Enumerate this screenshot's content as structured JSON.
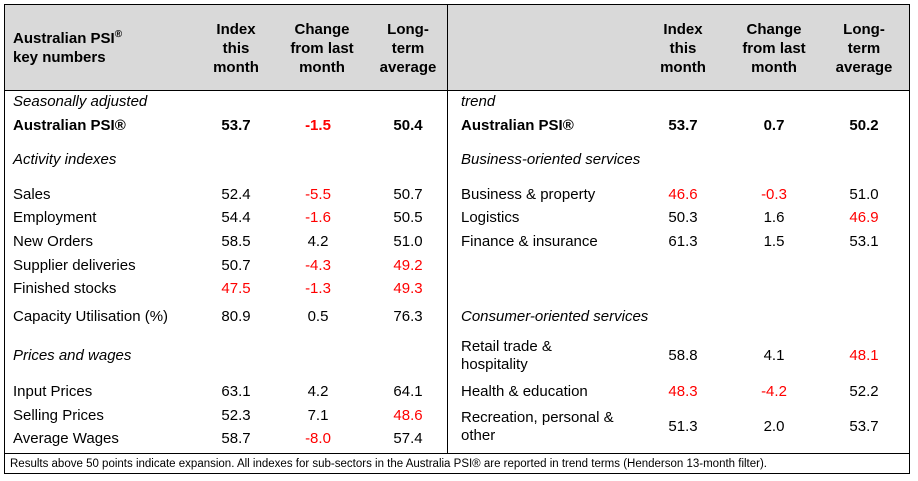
{
  "header": {
    "title": "Australian PSI",
    "title_mark": "®",
    "title_line2": "key numbers",
    "col1": [
      "Index",
      "this",
      "month"
    ],
    "col2": [
      "Change",
      "from last",
      "month"
    ],
    "col3": [
      "Long-",
      "term",
      "average"
    ]
  },
  "left": {
    "section_sa": "Seasonally adjusted",
    "psi": {
      "label": "Australian PSI®",
      "index": "53.7",
      "change": "-1.5",
      "avg": "50.4"
    },
    "section_activity": "Activity indexes",
    "activity": [
      {
        "label": "Sales",
        "index": "52.4",
        "change": "-5.5",
        "avg": "50.7"
      },
      {
        "label": "Employment",
        "index": "54.4",
        "change": "-1.6",
        "avg": "50.5"
      },
      {
        "label": "New Orders",
        "index": "58.5",
        "change": "4.2",
        "avg": "51.0"
      },
      {
        "label": "Supplier deliveries",
        "index": "50.7",
        "change": "-4.3",
        "avg": "49.2"
      },
      {
        "label": "Finished stocks",
        "index": "47.5",
        "change": "-1.3",
        "avg": "49.3"
      },
      {
        "label": "Capacity Utilisation (%)",
        "index": "80.9",
        "change": "0.5",
        "avg": "76.3"
      }
    ],
    "section_prices": "Prices and wages",
    "prices": [
      {
        "label": "Input Prices",
        "index": "63.1",
        "change": "4.2",
        "avg": "64.1"
      },
      {
        "label": "Selling Prices",
        "index": "52.3",
        "change": "7.1",
        "avg": "48.6"
      },
      {
        "label": "Average Wages",
        "index": "58.7",
        "change": "-8.0",
        "avg": "57.4"
      }
    ]
  },
  "right": {
    "section_trend": "trend",
    "psi": {
      "label": "Australian PSI®",
      "index": "53.7",
      "change": "0.7",
      "avg": "50.2"
    },
    "section_business": "Business-oriented services",
    "business": [
      {
        "label": "Business & property",
        "index": "46.6",
        "change": "-0.3",
        "avg": "51.0"
      },
      {
        "label": "Logistics",
        "index": "50.3",
        "change": "1.6",
        "avg": "46.9"
      },
      {
        "label": "Finance & insurance",
        "index": "61.3",
        "change": "1.5",
        "avg": "53.1"
      }
    ],
    "section_consumer": "Consumer-oriented services",
    "consumer": [
      {
        "label1": "Retail trade &",
        "label2": "hospitality",
        "index": "58.8",
        "change": "4.1",
        "avg": "48.1"
      },
      {
        "label1": "Health & education",
        "label2": "",
        "index": "48.3",
        "change": "-4.2",
        "avg": "52.2"
      },
      {
        "label1": "Recreation, personal &",
        "label2": "other",
        "index": "51.3",
        "change": "2.0",
        "avg": "53.7"
      }
    ]
  },
  "footnote": "Results above 50 points indicate expansion. All indexes for sub-sectors in the Australia PSI® are reported in trend terms (Henderson 13-month filter)."
}
